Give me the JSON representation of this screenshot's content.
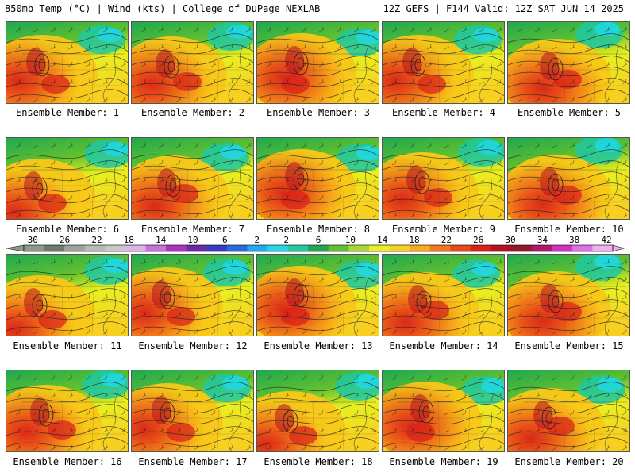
{
  "header": {
    "left": "850mb Temp (°C) | Wind (kts) | College of DuPage NEXLAB",
    "right": "12Z GEFS | F144 Valid: 12Z SAT JUN 14 2025"
  },
  "members": [
    {
      "label": "Ensemble Member: 1",
      "variant": 0
    },
    {
      "label": "Ensemble Member: 2",
      "variant": 1
    },
    {
      "label": "Ensemble Member: 3",
      "variant": 2
    },
    {
      "label": "Ensemble Member: 4",
      "variant": 0
    },
    {
      "label": "Ensemble Member: 5",
      "variant": 3
    },
    {
      "label": "Ensemble Member: 6",
      "variant": 4
    },
    {
      "label": "Ensemble Member: 7",
      "variant": 5
    },
    {
      "label": "Ensemble Member: 8",
      "variant": 2
    },
    {
      "label": "Ensemble Member: 9",
      "variant": 1
    },
    {
      "label": "Ensemble Member: 10",
      "variant": 3
    },
    {
      "label": "Ensemble Member: 11",
      "variant": 4
    },
    {
      "label": "Ensemble Member: 12",
      "variant": 0
    },
    {
      "label": "Ensemble Member: 13",
      "variant": 2
    },
    {
      "label": "Ensemble Member: 14",
      "variant": 5
    },
    {
      "label": "Ensemble Member: 15",
      "variant": 3
    },
    {
      "label": "Ensemble Member: 16",
      "variant": 1
    },
    {
      "label": "Ensemble Member: 17",
      "variant": 0
    },
    {
      "label": "Ensemble Member: 18",
      "variant": 4
    },
    {
      "label": "Ensemble Member: 19",
      "variant": 2
    },
    {
      "label": "Ensemble Member: 20",
      "variant": 5
    }
  ],
  "colorscale": {
    "labels": [
      "-30",
      "-26",
      "-22",
      "-18",
      "-14",
      "-10",
      "-6",
      "-2",
      "2",
      "6",
      "10",
      "14",
      "18",
      "22",
      "26",
      "30",
      "34",
      "38",
      "42"
    ],
    "colors": [
      "#8c9c8c",
      "#6c7c6c",
      "#9aa49a",
      "#b4bcb4",
      "#c8c8c8",
      "#dcb4e8",
      "#c870e0",
      "#b030c0",
      "#6a2aa8",
      "#3a3ac8",
      "#2a6ae0",
      "#20a8f0",
      "#20d8e8",
      "#20c8a0",
      "#20a850",
      "#60c030",
      "#a8d830",
      "#e8f020",
      "#f8d020",
      "#f8a818",
      "#f07818",
      "#e84818",
      "#d82018",
      "#b81020",
      "#901828",
      "#b01870",
      "#d030c0",
      "#e070e8",
      "#f0b0f0"
    ]
  }
}
